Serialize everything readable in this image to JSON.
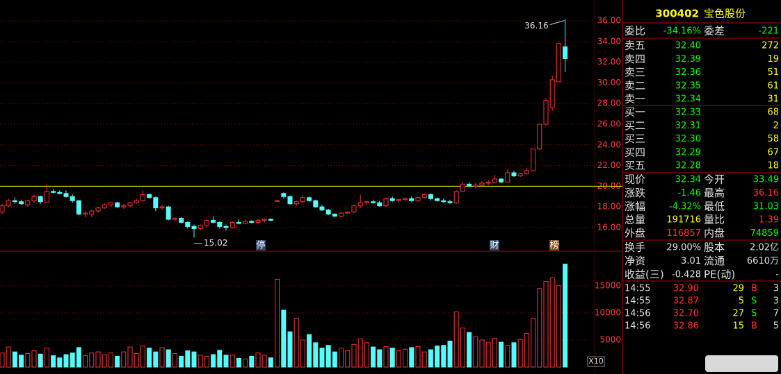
{
  "chart_data": [
    {
      "type": "candlestick",
      "up_color": "#ff3232",
      "down_color": "#54fcfc",
      "grid": true,
      "ylim": [
        14.52,
        37.68
      ],
      "yticks": [
        {
          "value": 16,
          "label": "16.00"
        },
        {
          "value": 18,
          "label": "18.00"
        },
        {
          "value": 20,
          "label": "20.00"
        },
        {
          "value": 22,
          "label": "22.00"
        },
        {
          "value": 24,
          "label": "24.00"
        },
        {
          "value": 26,
          "label": "26.00"
        },
        {
          "value": 28,
          "label": "28.00"
        },
        {
          "value": 30,
          "label": "30.00"
        },
        {
          "value": 32,
          "label": "32.00"
        },
        {
          "value": 34,
          "label": "34.00"
        },
        {
          "value": 36,
          "label": "36.00"
        }
      ],
      "hlines": [
        {
          "value": 20,
          "color": "#ffff00"
        }
      ],
      "annotations": [
        {
          "label": "36.16",
          "value": 36.16
        },
        {
          "label": "15.02",
          "value": 15.02
        }
      ],
      "markers": [
        "停",
        "财",
        "榜"
      ],
      "open": [
        17.5,
        18.1,
        18.6,
        18.5,
        18.2,
        18.6,
        19.0,
        18.4,
        19.5,
        19.4,
        19.3,
        19.0,
        18.6,
        17.3,
        17.3,
        17.6,
        17.9,
        18.2,
        18.4,
        18.0,
        18.1,
        18.4,
        18.6,
        19.2,
        18.9,
        17.9,
        18.0,
        16.8,
        16.9,
        16.5,
        16.1,
        15.9,
        16.2,
        16.7,
        16.5,
        16.1,
        16.0,
        16.5,
        16.4,
        16.6,
        16.5,
        16.7,
        16.8,
        18.6,
        19.3,
        19.0,
        18.3,
        18.5,
        18.9,
        18.6,
        18.0,
        17.7,
        17.3,
        17.1,
        17.4,
        17.5,
        18.1,
        18.4,
        18.5,
        18.4,
        18.1,
        18.8,
        18.6,
        18.7,
        18.8,
        18.6,
        18.9,
        19.2,
        18.8,
        18.6,
        18.5,
        18.4,
        19.5,
        20.2,
        20.0,
        20.1,
        20.3,
        20.4,
        20.7,
        20.4,
        21.3,
        21.0,
        21.2,
        21.5,
        23.6,
        26.0,
        27.6,
        30.1,
        33.49
      ],
      "high": [
        18.3,
        18.8,
        18.9,
        18.7,
        18.7,
        19.2,
        19.1,
        20.2,
        19.7,
        19.6,
        19.6,
        19.2,
        18.7,
        17.6,
        17.7,
        18.0,
        18.3,
        18.5,
        18.5,
        18.3,
        18.5,
        18.8,
        19.6,
        19.3,
        19.0,
        18.2,
        18.1,
        17.0,
        17.0,
        16.6,
        16.3,
        16.3,
        16.8,
        17.1,
        16.6,
        16.3,
        16.6,
        16.8,
        16.7,
        16.7,
        16.8,
        16.9,
        16.9,
        18.7,
        19.4,
        19.1,
        18.6,
        19.1,
        19.0,
        18.7,
        18.2,
        17.8,
        17.4,
        17.5,
        17.6,
        18.2,
        19.2,
        18.6,
        18.7,
        18.6,
        18.9,
        19.0,
        18.8,
        18.9,
        19.0,
        19.0,
        19.3,
        19.3,
        18.9,
        18.8,
        18.7,
        19.6,
        20.4,
        20.4,
        20.3,
        20.5,
        20.6,
        21.1,
        20.8,
        21.6,
        21.5,
        21.3,
        21.8,
        23.6,
        26.0,
        28.5,
        30.7,
        33.9,
        36.16
      ],
      "low": [
        17.3,
        18.0,
        18.3,
        18.2,
        18.0,
        18.4,
        18.3,
        18.4,
        19.3,
        19.2,
        18.9,
        18.4,
        17.2,
        17.0,
        17.0,
        17.5,
        17.8,
        18.0,
        17.9,
        17.8,
        18.0,
        18.3,
        18.5,
        18.8,
        17.6,
        17.7,
        16.7,
        16.6,
        16.4,
        15.9,
        15.02,
        15.8,
        16.0,
        16.4,
        15.9,
        15.7,
        15.9,
        16.3,
        16.3,
        16.4,
        16.4,
        16.5,
        16.6,
        18.5,
        18.8,
        18.2,
        18.1,
        18.4,
        18.5,
        17.9,
        17.6,
        17.2,
        17.0,
        17.0,
        17.3,
        17.4,
        17.9,
        18.2,
        18.3,
        18.0,
        18.0,
        18.5,
        18.4,
        18.6,
        18.5,
        18.5,
        18.8,
        18.6,
        18.5,
        18.4,
        18.3,
        18.3,
        19.4,
        19.9,
        19.8,
        20.0,
        20.1,
        20.3,
        20.3,
        20.4,
        20.9,
        20.9,
        21.1,
        21.5,
        23.5,
        25.8,
        27.3,
        30.1,
        31.03
      ],
      "close": [
        18.1,
        18.6,
        18.5,
        18.3,
        18.6,
        19.0,
        18.5,
        19.5,
        19.4,
        19.3,
        19.0,
        18.6,
        17.3,
        17.4,
        17.6,
        17.9,
        18.2,
        18.4,
        18.0,
        18.1,
        18.4,
        18.6,
        19.2,
        18.9,
        17.9,
        18.0,
        16.8,
        16.9,
        16.5,
        16.1,
        15.9,
        16.2,
        16.7,
        16.5,
        16.1,
        16.0,
        16.5,
        16.4,
        16.6,
        16.5,
        16.7,
        16.8,
        16.7,
        18.6,
        19.0,
        18.3,
        18.5,
        18.9,
        18.6,
        18.0,
        17.7,
        17.3,
        17.1,
        17.4,
        17.5,
        18.1,
        18.4,
        18.5,
        18.4,
        18.1,
        18.8,
        18.6,
        18.7,
        18.8,
        18.6,
        18.9,
        19.2,
        18.8,
        18.6,
        18.5,
        18.4,
        19.5,
        20.2,
        20.0,
        20.1,
        20.3,
        20.4,
        20.7,
        20.4,
        21.3,
        21.0,
        21.2,
        21.5,
        23.6,
        26.0,
        28.3,
        30.3,
        33.8,
        32.34
      ]
    },
    {
      "type": "bar",
      "unit_label": "X10",
      "grid": true,
      "ylim": [
        0,
        21000
      ],
      "yticks": [
        5000,
        10000,
        15000
      ],
      "values": [
        2600,
        3700,
        2800,
        2200,
        2500,
        3000,
        2400,
        3500,
        2100,
        1700,
        2300,
        2600,
        3600,
        2100,
        2600,
        2800,
        2300,
        2600,
        2000,
        2800,
        3700,
        2500,
        3900,
        3500,
        2800,
        3600,
        3200,
        2500,
        2000,
        3000,
        2800,
        2200,
        2000,
        2300,
        3100,
        2200,
        2200,
        1600,
        1500,
        2000,
        2600,
        2200,
        1700,
        16200,
        10500,
        6500,
        9000,
        5000,
        6000,
        4500,
        3500,
        4000,
        2800,
        3500,
        3000,
        4200,
        5200,
        4500,
        3700,
        3200,
        3800,
        3500,
        3000,
        3300,
        3600,
        3800,
        2800,
        3200,
        3900,
        4000,
        4800,
        10200,
        7200,
        6400,
        5600,
        5000,
        4500,
        5300,
        4600,
        4000,
        4500,
        5100,
        6200,
        9000,
        14500,
        15800,
        16500,
        15000,
        19000
      ]
    }
  ],
  "quote": {
    "code": "300402",
    "name": "宝色股份",
    "ratio": {
      "label": "委比",
      "value": "-34.16%",
      "label2": "委差",
      "value2": "-221"
    },
    "asks": [
      {
        "label": "卖五",
        "price": "32.40",
        "volume": "272"
      },
      {
        "label": "卖四",
        "price": "32.39",
        "volume": "19"
      },
      {
        "label": "卖三",
        "price": "32.36",
        "volume": "51"
      },
      {
        "label": "卖二",
        "price": "32.35",
        "volume": "61"
      },
      {
        "label": "卖一",
        "price": "32.34",
        "volume": "31"
      }
    ],
    "bids": [
      {
        "label": "买一",
        "price": "32.33",
        "volume": "68"
      },
      {
        "label": "买二",
        "price": "32.31",
        "volume": "2"
      },
      {
        "label": "买三",
        "price": "32.30",
        "volume": "58"
      },
      {
        "label": "买四",
        "price": "32.29",
        "volume": "67"
      },
      {
        "label": "买五",
        "price": "32.28",
        "volume": "18"
      }
    ],
    "stats": [
      {
        "label": "现价",
        "value": "32.34",
        "color": "#00ff00",
        "label2": "今开",
        "value2": "33.49",
        "color2": "#00ff00"
      },
      {
        "label": "涨跌",
        "value": "-1.46",
        "color": "#00ff00",
        "label2": "最高",
        "value2": "36.16",
        "color2": "#ff3232"
      },
      {
        "label": "涨幅",
        "value": "-4.32%",
        "color": "#00ff00",
        "label2": "最低",
        "value2": "31.03",
        "color2": "#00ff00"
      },
      {
        "label": "总量",
        "value": "191716",
        "color": "#ffff00",
        "label2": "量比",
        "value2": "1.39",
        "color2": "#ff3232"
      },
      {
        "label": "外盘",
        "value": "116857",
        "color": "#ff3232",
        "label2": "内盘",
        "value2": "74859",
        "color2": "#00ff00"
      },
      {
        "label": "换手",
        "value": "29.00%",
        "color": "#e0e0e0",
        "label2": "股本",
        "value2": "2.02亿",
        "color2": "#e0e0e0"
      },
      {
        "label": "净资",
        "value": "3.01",
        "color": "#e0e0e0",
        "label2": "流通",
        "value2": "6610万",
        "color2": "#e0e0e0"
      },
      {
        "label": "收益(三)",
        "value": "-0.428",
        "color": "#e0e0e0",
        "label2": "PE(动)",
        "value2": "-",
        "color2": "#e0e0e0"
      }
    ],
    "side_colors": {
      "B": "#ff3232",
      "S": "#00ff00"
    },
    "ticks": [
      {
        "time": "14:55",
        "price": "32.90",
        "volume": "29",
        "side": "B",
        "count": "3"
      },
      {
        "time": "14:55",
        "price": "32.87",
        "volume": "5",
        "side": "S",
        "count": "3"
      },
      {
        "time": "14:56",
        "price": "32.70",
        "volume": "27",
        "side": "S",
        "count": "7"
      },
      {
        "time": "14:56",
        "price": "32.86",
        "volume": "15",
        "side": "B",
        "count": "5"
      }
    ]
  }
}
